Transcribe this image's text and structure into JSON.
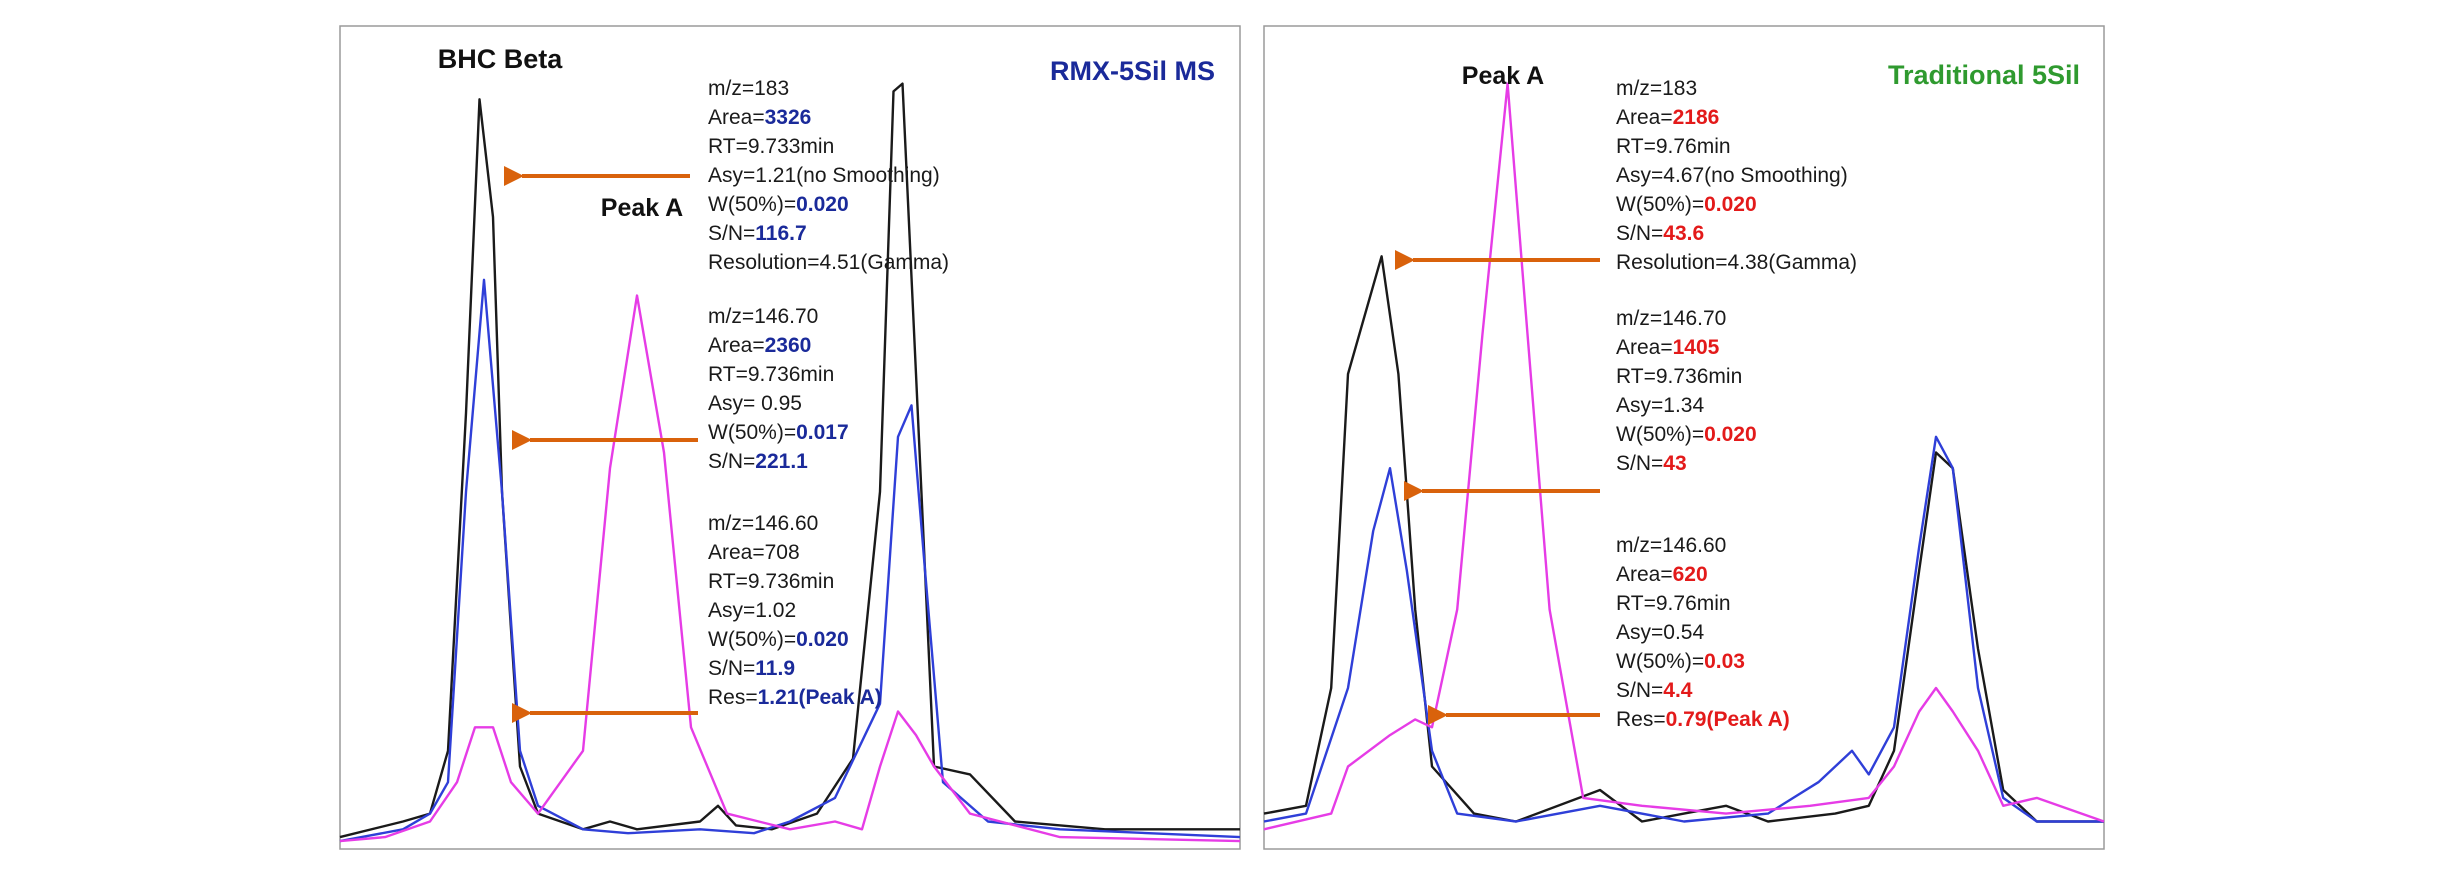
{
  "colors": {
    "black": "#1a1a1a",
    "blue": "#2f3fd8",
    "magenta": "#e63ce6",
    "arrow": "#d9620c",
    "navy": "#1a2a9a",
    "green": "#2f9a2f",
    "red": "#e31a1a",
    "frame": "#9a9a9a"
  },
  "chart_data": [
    {
      "type": "line",
      "title": "RMX-5Sil MS",
      "title_color": "navy",
      "highlight_color": "navy",
      "peak_labels": [
        {
          "key": "bhc",
          "text": "BHC Beta"
        },
        {
          "key": "pa",
          "text": "Peak A"
        }
      ],
      "series": [
        {
          "color": "black",
          "points": [
            [
              0,
              0.01
            ],
            [
              0.07,
              0.03
            ],
            [
              0.1,
              0.04
            ],
            [
              0.12,
              0.12
            ],
            [
              0.14,
              0.55
            ],
            [
              0.155,
              0.95
            ],
            [
              0.17,
              0.8
            ],
            [
              0.18,
              0.45
            ],
            [
              0.2,
              0.1
            ],
            [
              0.22,
              0.04
            ],
            [
              0.27,
              0.02
            ],
            [
              0.3,
              0.03
            ],
            [
              0.33,
              0.02
            ],
            [
              0.4,
              0.03
            ],
            [
              0.42,
              0.05
            ],
            [
              0.44,
              0.025
            ],
            [
              0.48,
              0.02
            ],
            [
              0.53,
              0.04
            ],
            [
              0.57,
              0.11
            ],
            [
              0.6,
              0.45
            ],
            [
              0.615,
              0.96
            ],
            [
              0.625,
              0.97
            ],
            [
              0.64,
              0.6
            ],
            [
              0.66,
              0.1
            ],
            [
              0.7,
              0.09
            ],
            [
              0.75,
              0.03
            ],
            [
              0.85,
              0.02
            ],
            [
              1,
              0.02
            ]
          ]
        },
        {
          "color": "blue",
          "points": [
            [
              0,
              0.005
            ],
            [
              0.07,
              0.02
            ],
            [
              0.1,
              0.04
            ],
            [
              0.12,
              0.08
            ],
            [
              0.14,
              0.45
            ],
            [
              0.16,
              0.72
            ],
            [
              0.18,
              0.45
            ],
            [
              0.2,
              0.12
            ],
            [
              0.22,
              0.05
            ],
            [
              0.27,
              0.02
            ],
            [
              0.32,
              0.015
            ],
            [
              0.4,
              0.02
            ],
            [
              0.46,
              0.015
            ],
            [
              0.5,
              0.03
            ],
            [
              0.55,
              0.06
            ],
            [
              0.6,
              0.18
            ],
            [
              0.62,
              0.52
            ],
            [
              0.635,
              0.56
            ],
            [
              0.65,
              0.35
            ],
            [
              0.67,
              0.08
            ],
            [
              0.72,
              0.03
            ],
            [
              0.8,
              0.02
            ],
            [
              1,
              0.01
            ]
          ]
        },
        {
          "color": "magenta",
          "points": [
            [
              0,
              0.005
            ],
            [
              0.05,
              0.01
            ],
            [
              0.1,
              0.03
            ],
            [
              0.13,
              0.08
            ],
            [
              0.15,
              0.15
            ],
            [
              0.17,
              0.15
            ],
            [
              0.19,
              0.08
            ],
            [
              0.22,
              0.04
            ],
            [
              0.27,
              0.12
            ],
            [
              0.3,
              0.48
            ],
            [
              0.33,
              0.7
            ],
            [
              0.36,
              0.5
            ],
            [
              0.39,
              0.15
            ],
            [
              0.43,
              0.04
            ],
            [
              0.5,
              0.02
            ],
            [
              0.55,
              0.03
            ],
            [
              0.58,
              0.02
            ],
            [
              0.6,
              0.1
            ],
            [
              0.62,
              0.17
            ],
            [
              0.64,
              0.14
            ],
            [
              0.66,
              0.1
            ],
            [
              0.7,
              0.04
            ],
            [
              0.8,
              0.01
            ],
            [
              1,
              0.005
            ]
          ]
        }
      ],
      "annotations": [
        {
          "lines": [
            {
              "label": "m/z=183",
              "value": ""
            },
            {
              "label": "Area=",
              "value": "3326"
            },
            {
              "label": "RT=9.733min",
              "value": ""
            },
            {
              "label": "Asy=1.21(no Smoothing)",
              "value": ""
            },
            {
              "label": "W(50%)=",
              "value": "0.020"
            },
            {
              "label": "S/N=",
              "value": "116.7"
            },
            {
              "label": "Resolution=4.51(Gamma)",
              "value": ""
            }
          ]
        },
        {
          "lines": [
            {
              "label": "m/z=146.70",
              "value": ""
            },
            {
              "label": "Area=",
              "value": "2360"
            },
            {
              "label": "RT=9.736min",
              "value": ""
            },
            {
              "label": "Asy= 0.95",
              "value": ""
            },
            {
              "label": "W(50%)=",
              "value": "0.017"
            },
            {
              "label": "S/N=",
              "value": "221.1"
            }
          ]
        },
        {
          "lines": [
            {
              "label": "m/z=146.60",
              "value": ""
            },
            {
              "label": "Area=708",
              "value": ""
            },
            {
              "label": "RT=9.736min",
              "value": ""
            },
            {
              "label": "Asy=1.02",
              "value": ""
            },
            {
              "label": "W(50%)=",
              "value": "0.020"
            },
            {
              "label": "S/N=",
              "value": "11.9"
            },
            {
              "label": "Res=",
              "value": "1.21(Peak A)"
            }
          ]
        }
      ]
    },
    {
      "type": "line",
      "title": "Traditional 5Sil",
      "title_color": "green",
      "highlight_color": "red",
      "peak_labels": [
        {
          "key": "pa",
          "text": "Peak A"
        }
      ],
      "series": [
        {
          "color": "black",
          "points": [
            [
              0,
              0.04
            ],
            [
              0.05,
              0.05
            ],
            [
              0.08,
              0.2
            ],
            [
              0.1,
              0.6
            ],
            [
              0.14,
              0.75
            ],
            [
              0.16,
              0.6
            ],
            [
              0.18,
              0.3
            ],
            [
              0.2,
              0.1
            ],
            [
              0.25,
              0.04
            ],
            [
              0.3,
              0.03
            ],
            [
              0.4,
              0.07
            ],
            [
              0.45,
              0.03
            ],
            [
              0.5,
              0.04
            ],
            [
              0.55,
              0.05
            ],
            [
              0.6,
              0.03
            ],
            [
              0.68,
              0.04
            ],
            [
              0.72,
              0.05
            ],
            [
              0.75,
              0.12
            ],
            [
              0.78,
              0.35
            ],
            [
              0.8,
              0.5
            ],
            [
              0.82,
              0.48
            ],
            [
              0.85,
              0.25
            ],
            [
              0.88,
              0.07
            ],
            [
              0.92,
              0.03
            ],
            [
              1,
              0.03
            ]
          ]
        },
        {
          "color": "blue",
          "points": [
            [
              0,
              0.03
            ],
            [
              0.05,
              0.04
            ],
            [
              0.1,
              0.2
            ],
            [
              0.13,
              0.4
            ],
            [
              0.15,
              0.48
            ],
            [
              0.17,
              0.35
            ],
            [
              0.2,
              0.12
            ],
            [
              0.23,
              0.04
            ],
            [
              0.3,
              0.03
            ],
            [
              0.4,
              0.05
            ],
            [
              0.5,
              0.03
            ],
            [
              0.6,
              0.04
            ],
            [
              0.66,
              0.08
            ],
            [
              0.7,
              0.12
            ],
            [
              0.72,
              0.09
            ],
            [
              0.75,
              0.15
            ],
            [
              0.78,
              0.38
            ],
            [
              0.8,
              0.52
            ],
            [
              0.82,
              0.48
            ],
            [
              0.85,
              0.2
            ],
            [
              0.88,
              0.06
            ],
            [
              0.92,
              0.03
            ],
            [
              1,
              0.03
            ]
          ]
        },
        {
          "color": "magenta",
          "points": [
            [
              0,
              0.02
            ],
            [
              0.08,
              0.04
            ],
            [
              0.1,
              0.1
            ],
            [
              0.15,
              0.14
            ],
            [
              0.18,
              0.16
            ],
            [
              0.2,
              0.15
            ],
            [
              0.23,
              0.3
            ],
            [
              0.26,
              0.65
            ],
            [
              0.29,
              0.97
            ],
            [
              0.31,
              0.7
            ],
            [
              0.34,
              0.3
            ],
            [
              0.38,
              0.06
            ],
            [
              0.45,
              0.05
            ],
            [
              0.55,
              0.04
            ],
            [
              0.65,
              0.05
            ],
            [
              0.72,
              0.06
            ],
            [
              0.75,
              0.1
            ],
            [
              0.78,
              0.17
            ],
            [
              0.8,
              0.2
            ],
            [
              0.82,
              0.17
            ],
            [
              0.85,
              0.12
            ],
            [
              0.88,
              0.05
            ],
            [
              0.92,
              0.06
            ],
            [
              1,
              0.03
            ]
          ]
        }
      ],
      "annotations": [
        {
          "lines": [
            {
              "label": "m/z=183",
              "value": ""
            },
            {
              "label": "Area=",
              "value": "2186"
            },
            {
              "label": "RT=9.76min",
              "value": ""
            },
            {
              "label": "Asy=4.67(no Smoothing)",
              "value": ""
            },
            {
              "label": "W(50%)=",
              "value": "0.020"
            },
            {
              "label": "S/N=",
              "value": "43.6"
            },
            {
              "label": "Resolution=4.38(Gamma)",
              "value": ""
            }
          ]
        },
        {
          "lines": [
            {
              "label": "m/z=146.70",
              "value": ""
            },
            {
              "label": "Area=",
              "value": "1405"
            },
            {
              "label": "RT=9.736min",
              "value": ""
            },
            {
              "label": "Asy=1.34",
              "value": ""
            },
            {
              "label": "W(50%)=",
              "value": "0.020"
            },
            {
              "label": "S/N=",
              "value": "43"
            }
          ]
        },
        {
          "lines": [
            {
              "label": "m/z=146.60",
              "value": ""
            },
            {
              "label": "Area=",
              "value": "620"
            },
            {
              "label": "RT=9.76min",
              "value": ""
            },
            {
              "label": "Asy=0.54",
              "value": ""
            },
            {
              "label": "W(50%)=",
              "value": "0.03"
            },
            {
              "label": "S/N=",
              "value": "4.4"
            },
            {
              "label": "Res=",
              "value": "0.79(Peak A)"
            }
          ]
        }
      ]
    }
  ]
}
